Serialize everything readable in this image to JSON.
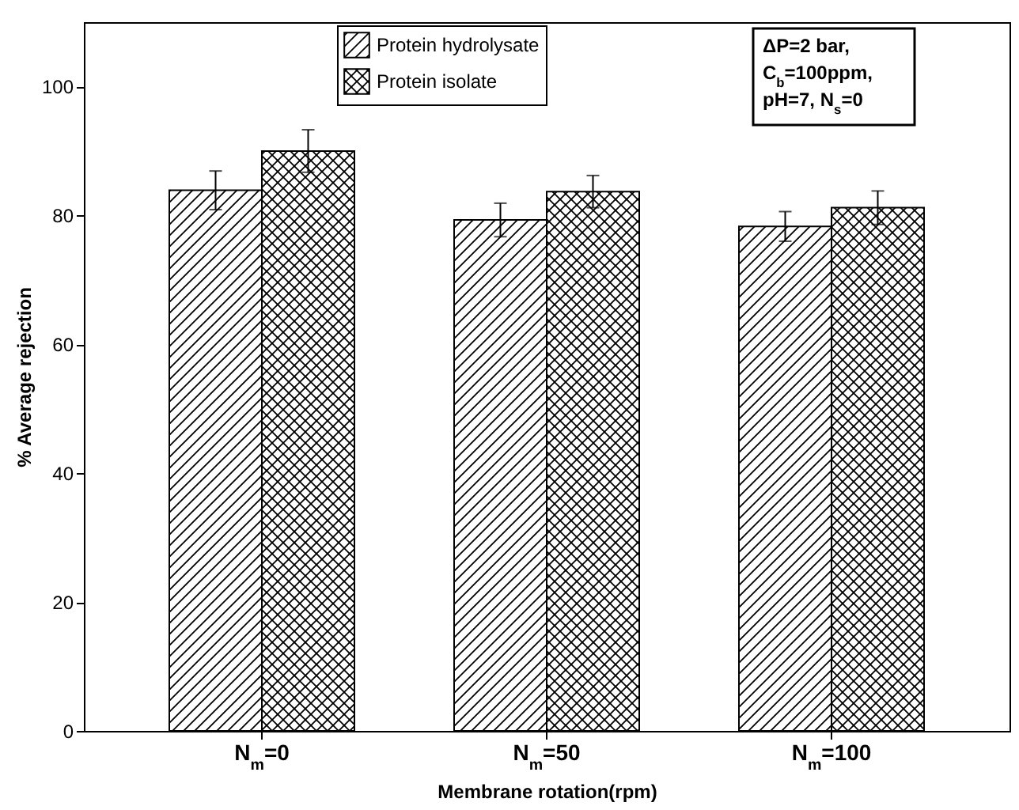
{
  "chart_data": {
    "type": "bar",
    "xlabel": "Membrane rotation(rpm)",
    "ylabel": "% Average rejection",
    "categories": [
      "N$_{m}$=0",
      "N$_{m}$=50",
      "N$_{m}$=100"
    ],
    "series": [
      {
        "name": "Protein hydrolysate",
        "color": "#000000",
        "values": [
          83.9,
          79.3,
          78.3
        ],
        "errors": [
          3,
          2.6,
          2.3
        ]
      },
      {
        "name": "Protein isolate",
        "color": "#000000",
        "values": [
          90,
          83.7,
          81.2
        ],
        "errors": [
          3.3,
          2.5,
          2.6
        ]
      }
    ],
    "ylim": [
      0,
      110
    ],
    "yticks": [
      0,
      20,
      40,
      60,
      80,
      100
    ],
    "annotations": [
      "ΔP=2 bar,",
      "C$_{b}$=100ppm,",
      "pH=7, N$_{s}$=0"
    ],
    "legend": "top",
    "grid": false
  }
}
